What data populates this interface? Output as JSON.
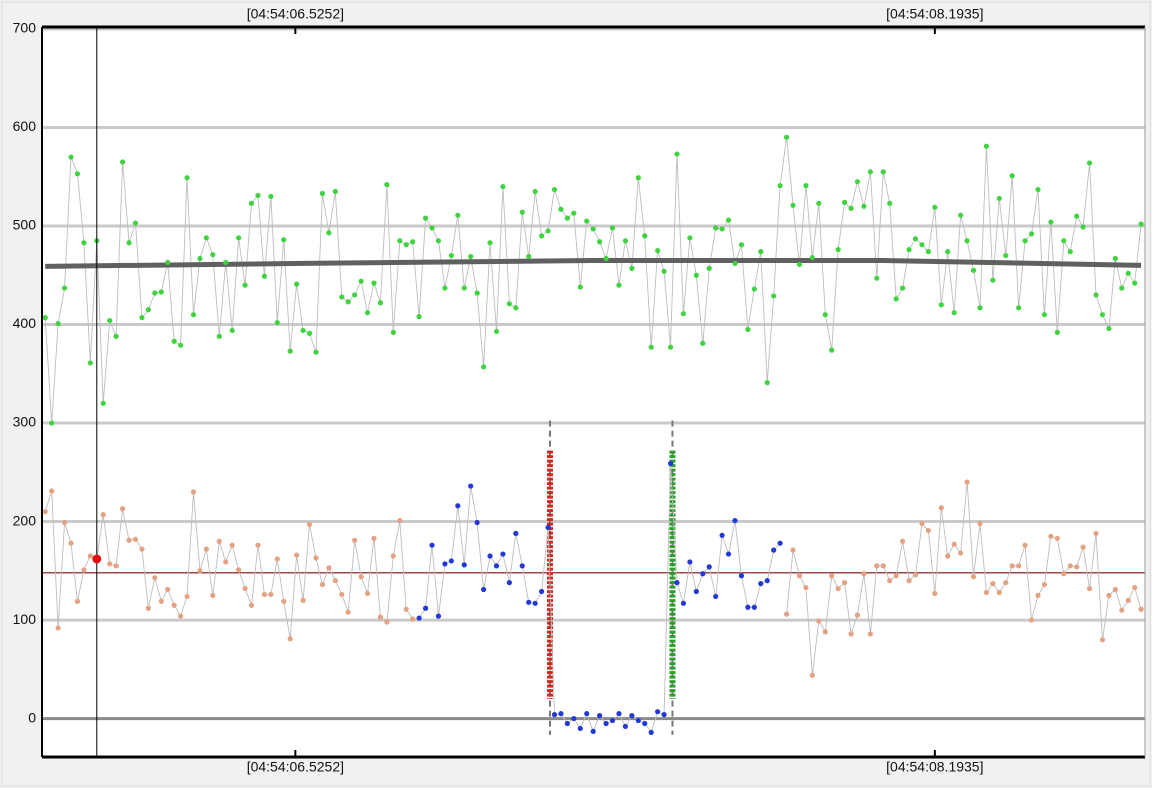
{
  "chart_data": {
    "type": "scatter",
    "xlim": [
      -0.5,
      170.6
    ],
    "ylim": [
      -39,
      702
    ],
    "xticks": [
      {
        "value": 38.8,
        "label": "[04:54:06.5252]"
      },
      {
        "value": 138.0,
        "label": "[04:54:08.1935]"
      }
    ],
    "yticks": [
      0,
      100,
      200,
      300,
      400,
      500,
      600,
      700
    ],
    "grid": true,
    "series": [
      {
        "color": "#3fd43f",
        "values": [
          407,
          300,
          401,
          437,
          570,
          553,
          483,
          361,
          485,
          320,
          404,
          388,
          565,
          483,
          503,
          407,
          415,
          432,
          433,
          463,
          383,
          379,
          549,
          410,
          467,
          488,
          471,
          388,
          463,
          394,
          488,
          440,
          523,
          531,
          449,
          530,
          402,
          486,
          373,
          441,
          394,
          391,
          372,
          533,
          493,
          535,
          428,
          423,
          430,
          444,
          412,
          442,
          422,
          542,
          392,
          485,
          481,
          484,
          408,
          508,
          498,
          485,
          437,
          470,
          511,
          437,
          469,
          432,
          357,
          483,
          393,
          540,
          421,
          417,
          514,
          469,
          535,
          490,
          495,
          537,
          517,
          508,
          513,
          438,
          505,
          497,
          484,
          467,
          498,
          440,
          485,
          457,
          549,
          490,
          377,
          475,
          454,
          377,
          573,
          411,
          488,
          450,
          381,
          457,
          498,
          497,
          506,
          462,
          481,
          395,
          436,
          474,
          341,
          429,
          541,
          590,
          521,
          461,
          541,
          468,
          523,
          410,
          374,
          476,
          524,
          518,
          545,
          520,
          555,
          447,
          555,
          523,
          426,
          437,
          476,
          487,
          481,
          474,
          519,
          420,
          474,
          412,
          511,
          485,
          455,
          417,
          581,
          445,
          528,
          470,
          551,
          417,
          485,
          492,
          537,
          410,
          504,
          392,
          485,
          474,
          510,
          499,
          564,
          430,
          410,
          396,
          467,
          437,
          452,
          442,
          502
        ]
      },
      {
        "color": "#e3a283",
        "values": [
          210,
          231,
          92,
          199,
          178,
          119,
          151,
          165,
          162,
          207,
          157,
          155,
          213,
          181,
          182,
          172,
          112,
          143,
          119,
          131,
          115,
          104,
          124,
          230,
          150,
          172,
          125,
          180,
          159,
          176,
          151,
          132,
          115,
          176,
          126,
          126,
          162,
          119,
          81,
          166,
          120,
          197,
          163,
          136,
          153,
          140,
          126,
          108,
          181,
          144,
          127,
          183,
          103,
          98,
          165,
          201,
          111,
          101,
          null,
          null,
          null,
          null,
          null,
          null,
          null,
          null,
          null,
          null,
          null,
          null,
          null,
          null,
          null,
          null,
          null,
          null,
          null,
          null,
          null,
          null,
          null,
          null,
          null,
          null,
          null,
          null,
          null,
          null,
          null,
          null,
          null,
          null,
          null,
          null,
          null,
          null,
          null,
          null,
          null,
          null,
          null,
          null,
          null,
          null,
          null,
          null,
          null,
          null,
          null,
          null,
          null,
          null,
          null,
          null,
          null,
          106,
          171,
          145,
          133,
          44,
          99,
          88,
          145,
          132,
          138,
          86,
          105,
          147,
          86,
          155,
          155,
          140,
          145,
          180,
          140,
          146,
          198,
          191,
          127,
          214,
          165,
          177,
          168,
          240,
          144,
          198,
          128,
          137,
          128,
          138,
          155,
          155,
          176,
          100,
          125,
          136,
          185,
          183,
          147,
          155,
          154,
          174,
          132,
          188,
          80,
          125,
          131,
          110,
          120,
          133,
          111
        ]
      },
      {
        "color": "#2239d6",
        "values": [
          null,
          null,
          null,
          null,
          null,
          null,
          null,
          null,
          null,
          null,
          null,
          null,
          null,
          null,
          null,
          null,
          null,
          null,
          null,
          null,
          null,
          null,
          null,
          null,
          null,
          null,
          null,
          null,
          null,
          null,
          null,
          null,
          null,
          null,
          null,
          null,
          null,
          null,
          null,
          null,
          null,
          null,
          null,
          null,
          null,
          null,
          null,
          null,
          null,
          null,
          null,
          null,
          null,
          null,
          null,
          null,
          null,
          null,
          102,
          112,
          176,
          104,
          157,
          160,
          216,
          156,
          236,
          199,
          131,
          165,
          155,
          167,
          138,
          188,
          155,
          118,
          117,
          129,
          194,
          4,
          5,
          -5,
          0,
          -10,
          5,
          -13,
          3,
          -5,
          -2,
          5,
          -8,
          3,
          -2,
          -5,
          -14,
          7,
          4,
          259,
          138,
          117,
          159,
          129,
          147,
          154,
          124,
          186,
          167,
          201,
          145,
          113,
          113,
          137,
          140,
          171,
          178,
          null,
          null,
          null,
          null,
          null,
          null,
          null,
          null,
          null,
          null,
          null,
          null,
          null,
          null,
          null,
          null,
          null,
          null,
          null,
          null,
          null,
          null,
          null,
          null,
          null,
          null,
          null,
          null,
          null,
          null,
          null,
          null,
          null,
          null,
          null,
          null,
          null,
          null,
          null,
          null,
          null,
          null,
          null,
          null,
          null,
          null,
          null,
          null,
          null,
          null
        ]
      }
    ],
    "trend": {
      "color": "#606060",
      "x": [
        0,
        40,
        85,
        130,
        170
      ],
      "values": [
        459,
        462,
        465,
        465,
        460
      ]
    },
    "mean_line": {
      "color": "#9a4a4a",
      "value": 148
    },
    "cursor": {
      "x": 8,
      "value": 162,
      "color": "#e01010"
    },
    "markers": [
      {
        "x": 78.3,
        "low": 20,
        "high": 272,
        "color": "#cc2b22"
      },
      {
        "x": 97.3,
        "low": 20,
        "high": 272,
        "color": "#2f9e2f"
      }
    ]
  }
}
